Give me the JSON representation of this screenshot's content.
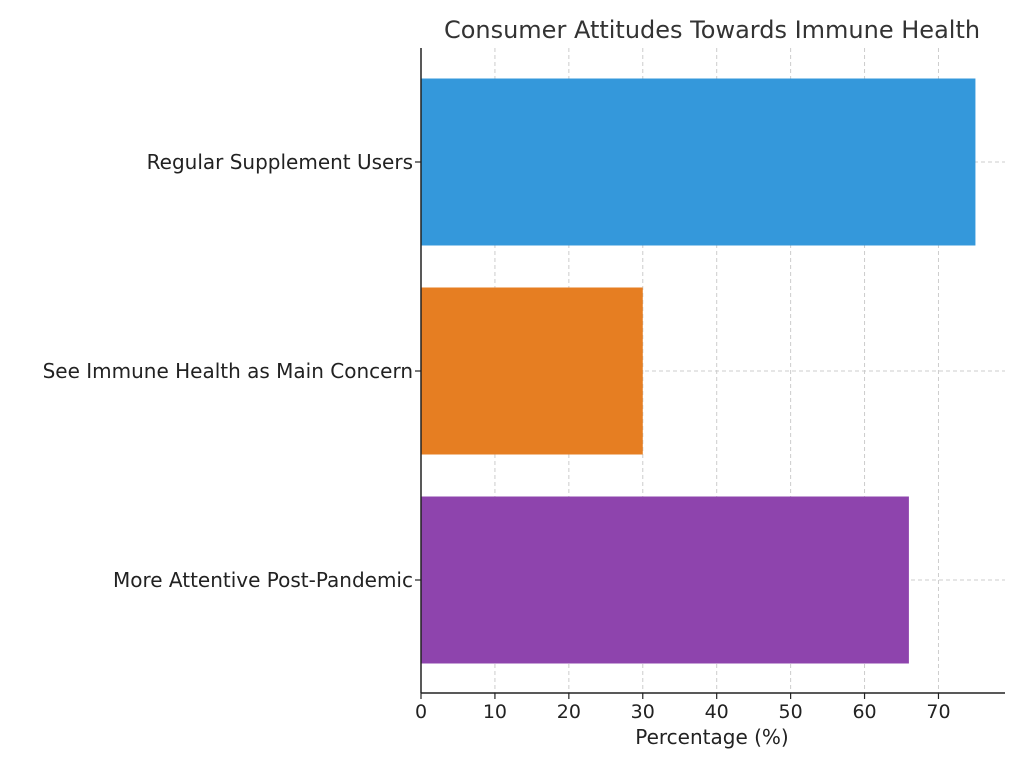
{
  "chart_data": {
    "type": "bar",
    "orientation": "horizontal",
    "title": "Consumer Attitudes Towards Immune Health",
    "xlabel": "Percentage (%)",
    "ylabel": "",
    "xlim": [
      0,
      79
    ],
    "xticks": [
      0,
      10,
      20,
      30,
      40,
      50,
      60,
      70
    ],
    "grid": true,
    "categories": [
      "Regular Supplement Users",
      "See Immune Health as Main Concern",
      "More Attentive Post-Pandemic"
    ],
    "values": [
      75,
      30,
      66
    ],
    "colors": [
      "#3498db",
      "#e67e22",
      "#8e44ad"
    ]
  }
}
